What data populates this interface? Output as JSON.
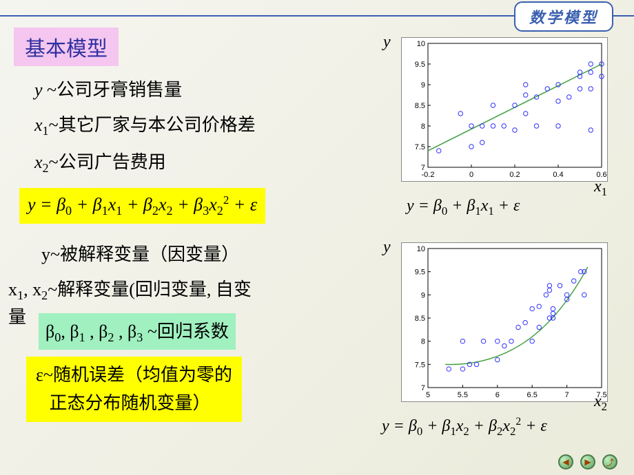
{
  "header": {
    "badge": "数学模型"
  },
  "title": "基本模型",
  "definitions": [
    {
      "var": "y",
      "desc": " ~公司牙膏销售量"
    },
    {
      "var": "x₁",
      "desc": "~其它厂家与本公司价格差"
    },
    {
      "var": "x₂",
      "desc": "~公司广告费用"
    }
  ],
  "main_equation": "y = β₀ + β₁x₁ + β₂x₂ + β₃x₂² + ε",
  "explanations": {
    "dependent": "y~被解释变量（因变量）",
    "independent": "x₁, x₂~解释变量(回归变量, 自变量",
    "coefficients": "β₀, β₁ , β₂ , β₃ ~回归系数",
    "error_line1": "ε~随机误差（均值为零的",
    "error_line2": "正态分布随机变量）"
  },
  "chart1": {
    "type": "scatter",
    "ylabel": "y",
    "xlabel": "x₁",
    "xlim": [
      -0.2,
      0.6
    ],
    "ylim": [
      7,
      10
    ],
    "xticks": [
      "-0.2",
      "0",
      "0.2",
      "0.4",
      "0.6"
    ],
    "yticks": [
      "7",
      "7.5",
      "8",
      "8.5",
      "9",
      "9.5",
      "10"
    ],
    "marker_color": "#3030ff",
    "line_color": "#40a040",
    "background": "#ffffff",
    "grid_color": "#000000",
    "points": [
      [
        -0.15,
        7.4
      ],
      [
        -0.05,
        8.3
      ],
      [
        0.0,
        7.5
      ],
      [
        0.0,
        8.0
      ],
      [
        0.05,
        7.6
      ],
      [
        0.05,
        8.0
      ],
      [
        0.1,
        8.0
      ],
      [
        0.1,
        8.5
      ],
      [
        0.15,
        8.0
      ],
      [
        0.2,
        7.9
      ],
      [
        0.2,
        8.5
      ],
      [
        0.25,
        8.3
      ],
      [
        0.25,
        8.75
      ],
      [
        0.25,
        9.0
      ],
      [
        0.3,
        8.0
      ],
      [
        0.3,
        8.7
      ],
      [
        0.35,
        8.9
      ],
      [
        0.4,
        8.6
      ],
      [
        0.4,
        9.0
      ],
      [
        0.45,
        8.7
      ],
      [
        0.5,
        8.9
      ],
      [
        0.5,
        9.3
      ],
      [
        0.5,
        9.2
      ],
      [
        0.55,
        9.3
      ],
      [
        0.55,
        8.9
      ],
      [
        0.6,
        9.2
      ],
      [
        0.6,
        9.5
      ],
      [
        0.55,
        7.9
      ],
      [
        0.55,
        9.5
      ],
      [
        0.4,
        8.0
      ]
    ],
    "fit_line": [
      [
        -0.2,
        7.4
      ],
      [
        0.6,
        9.5
      ]
    ],
    "equation": "y = β₀ + β₁x₁ + ε"
  },
  "chart2": {
    "type": "scatter",
    "ylabel": "y",
    "xlabel": "x₂",
    "xlim": [
      5,
      7.5
    ],
    "ylim": [
      7,
      10
    ],
    "xticks": [
      "5",
      "5.5",
      "6",
      "6.5",
      "7",
      "7.5"
    ],
    "yticks": [
      "7",
      "7.5",
      "8",
      "8.5",
      "9",
      "9.5",
      "10"
    ],
    "marker_color": "#3030ff",
    "line_color": "#40a040",
    "background": "#ffffff",
    "points": [
      [
        5.3,
        7.4
      ],
      [
        5.5,
        7.4
      ],
      [
        5.5,
        8.0
      ],
      [
        5.6,
        7.5
      ],
      [
        5.7,
        7.5
      ],
      [
        5.8,
        8.0
      ],
      [
        6.0,
        8.0
      ],
      [
        6.0,
        7.6
      ],
      [
        6.1,
        7.9
      ],
      [
        6.2,
        8.0
      ],
      [
        6.3,
        8.3
      ],
      [
        6.4,
        8.4
      ],
      [
        6.5,
        8.0
      ],
      [
        6.5,
        8.7
      ],
      [
        6.6,
        8.3
      ],
      [
        6.6,
        8.75
      ],
      [
        6.7,
        9.0
      ],
      [
        6.75,
        8.5
      ],
      [
        6.75,
        9.1
      ],
      [
        6.75,
        9.2
      ],
      [
        6.8,
        8.5
      ],
      [
        6.8,
        8.7
      ],
      [
        6.8,
        8.6
      ],
      [
        6.9,
        9.2
      ],
      [
        7.0,
        8.9
      ],
      [
        7.0,
        9.0
      ],
      [
        7.1,
        9.3
      ],
      [
        7.2,
        9.5
      ],
      [
        7.25,
        9.5
      ],
      [
        7.25,
        9.0
      ]
    ],
    "curve_control": [
      [
        5.25,
        7.5
      ],
      [
        6.3,
        7.45
      ],
      [
        6.9,
        8.5
      ],
      [
        7.3,
        9.6
      ]
    ],
    "equation": "y = β₀ + β₁x₂ + β₂x₂² + ε"
  },
  "nav": {
    "prev": "◀",
    "next": "▶",
    "up": "⤴"
  },
  "styling": {
    "bg_gradient": [
      "#f5f5f0",
      "#ebebdb"
    ],
    "title_bg": "#f4c6f0",
    "title_color": "#3030a0",
    "eq_bg": "#ffff00",
    "coef_bg": "#a0f0c0",
    "border_color": "#3a5fb0",
    "font_cn": "SimSun",
    "font_math": "Times New Roman",
    "title_fontsize": 30,
    "body_fontsize": 26
  }
}
